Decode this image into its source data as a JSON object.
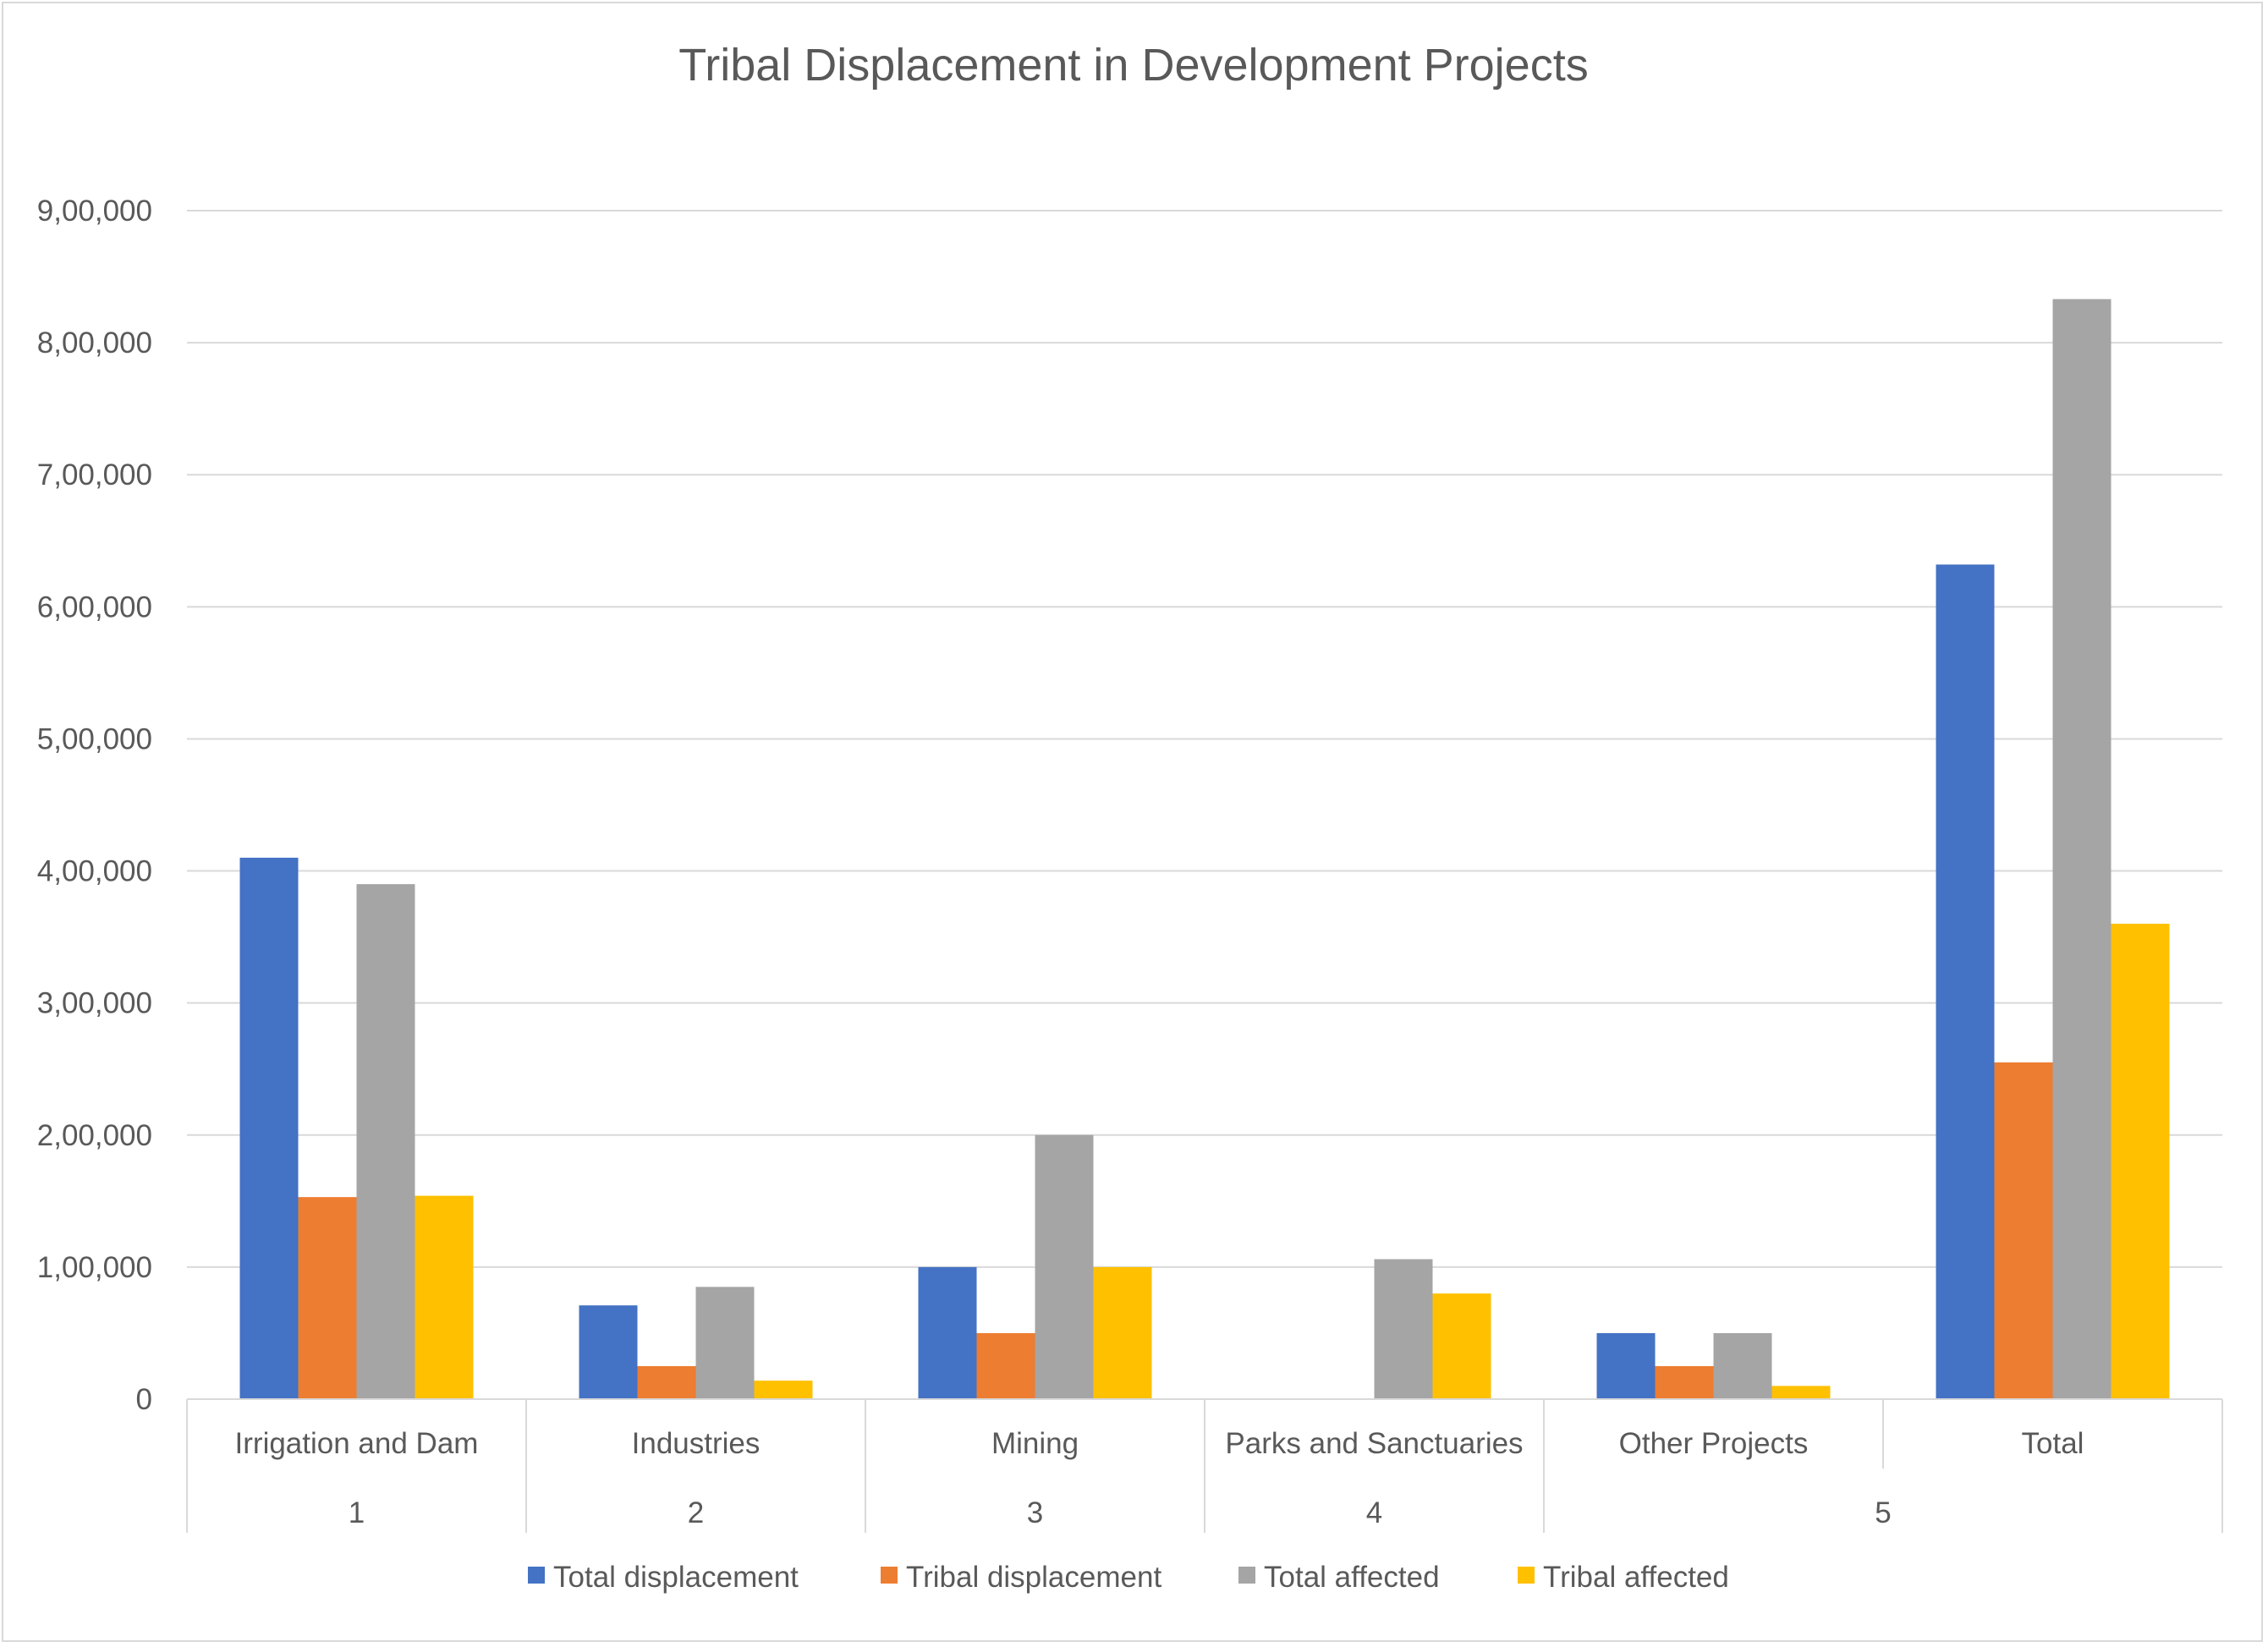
{
  "chart_data": {
    "type": "bar",
    "title": "Tribal Displacement in Development Projects",
    "xlabel": "",
    "ylabel": "",
    "ylim": [
      0,
      900000
    ],
    "yticks": [
      0,
      100000,
      200000,
      300000,
      400000,
      500000,
      600000,
      700000,
      800000,
      900000
    ],
    "ytick_labels": [
      "0",
      "1,00,000",
      "2,00,000",
      "3,00,000",
      "4,00,000",
      "5,00,000",
      "6,00,000",
      "7,00,000",
      "8,00,000",
      "9,00,000"
    ],
    "categories": [
      "Irrigation and Dam",
      "Industries",
      "Mining",
      "Parks and Sanctuaries",
      "Other Projects",
      "Total"
    ],
    "group_labels": [
      {
        "label": "1",
        "span": [
          0,
          0
        ]
      },
      {
        "label": "2",
        "span": [
          1,
          1
        ]
      },
      {
        "label": "3",
        "span": [
          2,
          2
        ]
      },
      {
        "label": "4",
        "span": [
          3,
          3
        ]
      },
      {
        "label": "5",
        "span": [
          4,
          5
        ]
      }
    ],
    "series": [
      {
        "name": "Total displacement",
        "color": "#4472C4",
        "values": [
          410000,
          71000,
          100000,
          0,
          50000,
          632000
        ]
      },
      {
        "name": "Tribal displacement",
        "color": "#ED7D31",
        "values": [
          153000,
          25000,
          50000,
          0,
          25000,
          255000
        ]
      },
      {
        "name": "Total affected",
        "color": "#A5A5A5",
        "values": [
          390000,
          85000,
          200000,
          106000,
          50000,
          833000
        ]
      },
      {
        "name": "Tribal affected",
        "color": "#FFC000",
        "values": [
          154000,
          14000,
          100000,
          80000,
          10000,
          360000
        ]
      }
    ],
    "grid": true,
    "legend_position": "bottom"
  }
}
